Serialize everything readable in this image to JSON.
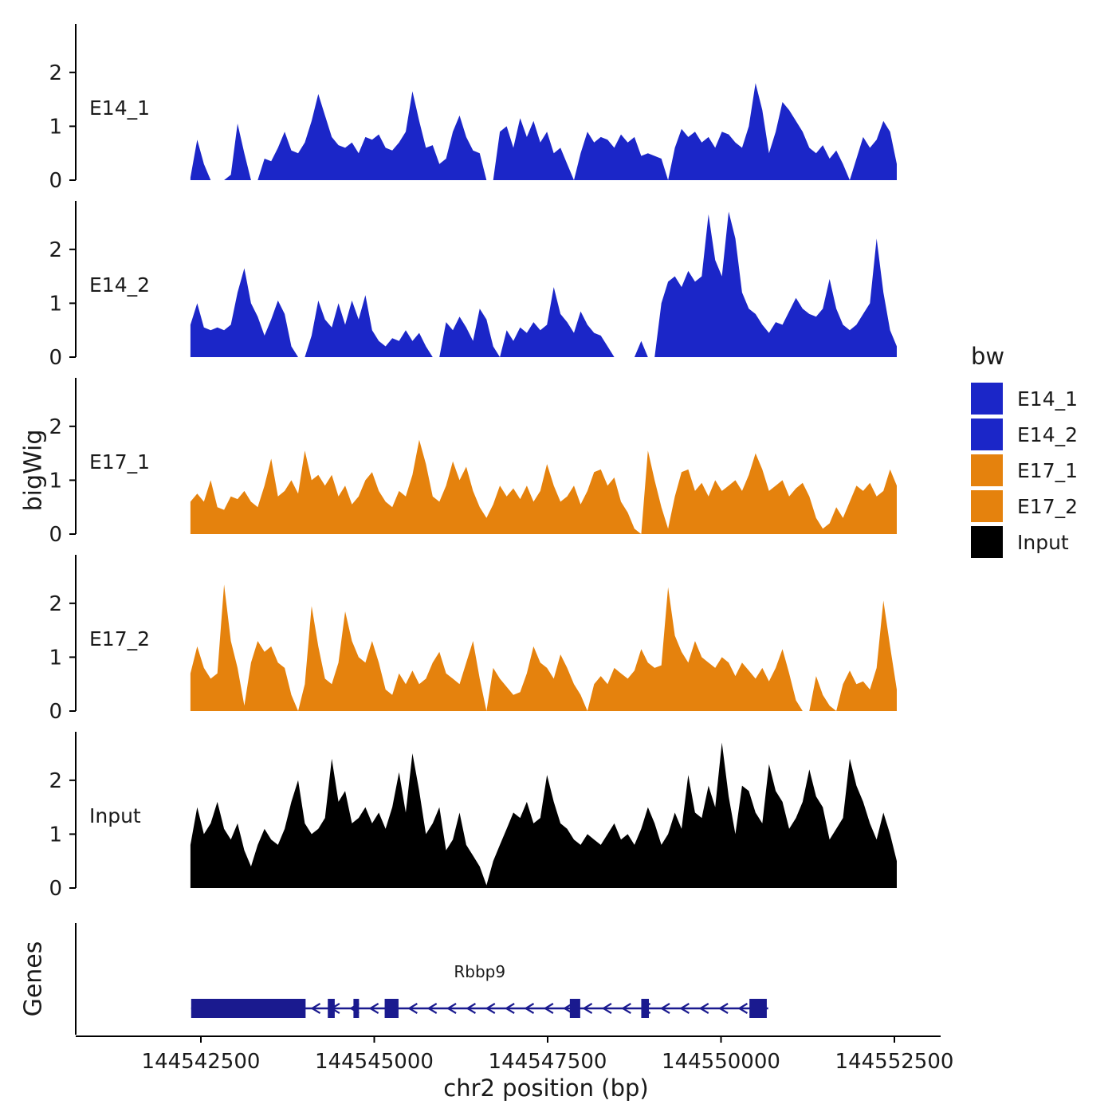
{
  "axes": {
    "y_label": "bigWig",
    "genes_label": "Genes",
    "x_label": "chr2 position (bp)"
  },
  "legend": {
    "title": "bw",
    "entries": [
      {
        "label": "E14_1",
        "color": "#1B26C8"
      },
      {
        "label": "E14_2",
        "color": "#1B26C8"
      },
      {
        "label": "E17_1",
        "color": "#E5820D"
      },
      {
        "label": "E17_2",
        "color": "#E5820D"
      },
      {
        "label": "Input",
        "color": "#000000"
      }
    ]
  },
  "chart_data": {
    "type": "area",
    "title": "",
    "xlabel": "chr2 position (bp)",
    "ylabel": "bigWig",
    "x_start": 144542350,
    "x_step": 97,
    "xlim": [
      144541250,
      144553250
    ],
    "ylim": [
      0,
      2.9
    ],
    "yticks": [
      0,
      1,
      2
    ],
    "x_ticks": [
      {
        "bp": 144542500,
        "label": "144542500"
      },
      {
        "bp": 144545000,
        "label": "144545000"
      },
      {
        "bp": 144547500,
        "label": "144547500"
      },
      {
        "bp": 144550000,
        "label": "144550000"
      },
      {
        "bp": 144552500,
        "label": "144552500"
      }
    ],
    "series": [
      {
        "name": "E14_1",
        "color": "#1B26C8",
        "values": [
          0.05,
          0.75,
          0.3,
          0,
          0,
          0,
          0.1,
          1.05,
          0.5,
          0,
          0,
          0.4,
          0.35,
          0.6,
          0.9,
          0.55,
          0.5,
          0.7,
          1.1,
          1.6,
          1.2,
          0.8,
          0.65,
          0.6,
          0.7,
          0.5,
          0.8,
          0.75,
          0.85,
          0.6,
          0.55,
          0.7,
          0.9,
          1.65,
          1.1,
          0.6,
          0.65,
          0.3,
          0.4,
          0.9,
          1.2,
          0.8,
          0.55,
          0.5,
          0,
          0,
          0.9,
          1.0,
          0.6,
          1.15,
          0.8,
          1.1,
          0.7,
          0.9,
          0.5,
          0.6,
          0.3,
          0,
          0.5,
          0.9,
          0.7,
          0.8,
          0.75,
          0.6,
          0.85,
          0.7,
          0.8,
          0.45,
          0.5,
          0.45,
          0.4,
          0,
          0.6,
          0.95,
          0.8,
          0.9,
          0.7,
          0.8,
          0.6,
          0.9,
          0.85,
          0.7,
          0.6,
          1.0,
          1.8,
          1.3,
          0.5,
          0.9,
          1.45,
          1.3,
          1.1,
          0.9,
          0.6,
          0.5,
          0.65,
          0.4,
          0.55,
          0.3,
          0,
          0.4,
          0.8,
          0.6,
          0.75,
          1.1,
          0.9,
          0.3
        ]
      },
      {
        "name": "E14_2",
        "color": "#1B26C8",
        "values": [
          0.6,
          1.0,
          0.55,
          0.5,
          0.55,
          0.5,
          0.6,
          1.2,
          1.65,
          1.0,
          0.75,
          0.4,
          0.7,
          1.05,
          0.8,
          0.2,
          0,
          0,
          0.4,
          1.05,
          0.7,
          0.55,
          1.0,
          0.6,
          1.05,
          0.7,
          1.15,
          0.5,
          0.3,
          0.2,
          0.35,
          0.3,
          0.5,
          0.3,
          0.45,
          0.2,
          0,
          0,
          0.65,
          0.5,
          0.75,
          0.55,
          0.3,
          0.9,
          0.7,
          0.2,
          0,
          0.5,
          0.3,
          0.55,
          0.45,
          0.65,
          0.5,
          0.6,
          1.3,
          0.8,
          0.65,
          0.45,
          0.85,
          0.6,
          0.45,
          0.4,
          0.2,
          0,
          0,
          0,
          0,
          0.3,
          0,
          0,
          1.0,
          1.4,
          1.5,
          1.3,
          1.6,
          1.4,
          1.5,
          2.65,
          1.8,
          1.5,
          2.7,
          2.2,
          1.2,
          0.9,
          0.8,
          0.6,
          0.45,
          0.65,
          0.6,
          0.85,
          1.1,
          0.9,
          0.8,
          0.75,
          0.9,
          1.45,
          0.9,
          0.6,
          0.5,
          0.6,
          0.8,
          1.0,
          2.2,
          1.2,
          0.5,
          0.2
        ]
      },
      {
        "name": "E17_1",
        "color": "#E5820D",
        "values": [
          0.6,
          0.75,
          0.6,
          1.0,
          0.5,
          0.45,
          0.7,
          0.65,
          0.8,
          0.6,
          0.5,
          0.9,
          1.4,
          0.7,
          0.8,
          1.0,
          0.75,
          1.55,
          1.0,
          1.1,
          0.9,
          1.1,
          0.7,
          0.9,
          0.55,
          0.7,
          1.0,
          1.15,
          0.8,
          0.6,
          0.5,
          0.8,
          0.7,
          1.1,
          1.75,
          1.3,
          0.7,
          0.6,
          0.9,
          1.35,
          1.0,
          1.25,
          0.8,
          0.5,
          0.3,
          0.55,
          0.9,
          0.7,
          0.85,
          0.65,
          0.9,
          0.6,
          0.8,
          1.3,
          0.9,
          0.6,
          0.7,
          0.9,
          0.55,
          0.8,
          1.15,
          1.2,
          0.9,
          1.05,
          0.6,
          0.4,
          0.1,
          0,
          1.55,
          1.0,
          0.5,
          0.1,
          0.7,
          1.15,
          1.2,
          0.8,
          0.95,
          0.7,
          1.0,
          0.8,
          0.9,
          1.0,
          0.8,
          1.1,
          1.5,
          1.2,
          0.8,
          0.9,
          1.0,
          0.7,
          0.85,
          0.95,
          0.7,
          0.3,
          0.1,
          0.2,
          0.5,
          0.3,
          0.6,
          0.9,
          0.8,
          0.95,
          0.7,
          0.8,
          1.2,
          0.9
        ]
      },
      {
        "name": "E17_2",
        "color": "#E5820D",
        "values": [
          0.7,
          1.2,
          0.8,
          0.6,
          0.7,
          2.35,
          1.3,
          0.8,
          0.1,
          0.9,
          1.3,
          1.1,
          1.2,
          0.9,
          0.8,
          0.3,
          0,
          0.5,
          1.95,
          1.2,
          0.6,
          0.5,
          0.9,
          1.85,
          1.3,
          1.0,
          0.9,
          1.3,
          0.9,
          0.4,
          0.3,
          0.7,
          0.5,
          0.75,
          0.5,
          0.6,
          0.9,
          1.1,
          0.7,
          0.6,
          0.5,
          0.9,
          1.3,
          0.6,
          0,
          0.8,
          0.6,
          0.45,
          0.3,
          0.35,
          0.7,
          1.2,
          0.9,
          0.8,
          0.6,
          1.05,
          0.8,
          0.5,
          0.3,
          0,
          0.5,
          0.65,
          0.5,
          0.8,
          0.7,
          0.6,
          0.75,
          1.15,
          0.9,
          0.8,
          0.85,
          2.3,
          1.4,
          1.1,
          0.9,
          1.3,
          1.0,
          0.9,
          0.8,
          1.0,
          0.9,
          0.65,
          0.9,
          0.75,
          0.6,
          0.8,
          0.55,
          0.8,
          1.15,
          0.7,
          0.2,
          0,
          0,
          0.65,
          0.3,
          0.1,
          0,
          0.5,
          0.75,
          0.5,
          0.55,
          0.4,
          0.8,
          2.05,
          1.2,
          0.4
        ]
      },
      {
        "name": "Input",
        "color": "#000000",
        "values": [
          0.8,
          1.5,
          1.0,
          1.2,
          1.6,
          1.1,
          0.9,
          1.2,
          0.7,
          0.4,
          0.8,
          1.1,
          0.9,
          0.8,
          1.1,
          1.6,
          2.0,
          1.2,
          1.0,
          1.1,
          1.3,
          2.4,
          1.6,
          1.8,
          1.2,
          1.3,
          1.5,
          1.2,
          1.4,
          1.1,
          1.5,
          2.15,
          1.4,
          2.5,
          1.8,
          1.0,
          1.2,
          1.5,
          0.7,
          0.9,
          1.4,
          0.8,
          0.6,
          0.4,
          0.05,
          0.5,
          0.8,
          1.1,
          1.4,
          1.3,
          1.6,
          1.2,
          1.3,
          2.1,
          1.6,
          1.2,
          1.1,
          0.9,
          0.8,
          1.0,
          0.9,
          0.8,
          1.0,
          1.2,
          0.9,
          1.0,
          0.8,
          1.1,
          1.5,
          1.2,
          0.8,
          1.0,
          1.4,
          1.1,
          2.1,
          1.4,
          1.3,
          1.9,
          1.5,
          2.7,
          1.7,
          1.0,
          1.9,
          1.8,
          1.4,
          1.2,
          2.3,
          1.8,
          1.6,
          1.1,
          1.3,
          1.6,
          2.2,
          1.7,
          1.5,
          0.9,
          1.1,
          1.3,
          2.4,
          1.9,
          1.6,
          1.2,
          0.9,
          1.4,
          1.0,
          0.5
        ]
      }
    ],
    "gene": {
      "name": "Rbbp9",
      "strand": "-",
      "start": 144542360,
      "end": 144550680,
      "color": "#1A1A8F",
      "arrow_start": 144544150,
      "arrow_step": 280,
      "exons": [
        [
          144542360,
          144544010
        ],
        [
          144544330,
          144544430
        ],
        [
          144544700,
          144544780
        ],
        [
          144545150,
          144545350
        ],
        [
          144547820,
          144547970
        ],
        [
          144548850,
          144548960
        ],
        [
          144550410,
          144550660
        ]
      ]
    }
  }
}
